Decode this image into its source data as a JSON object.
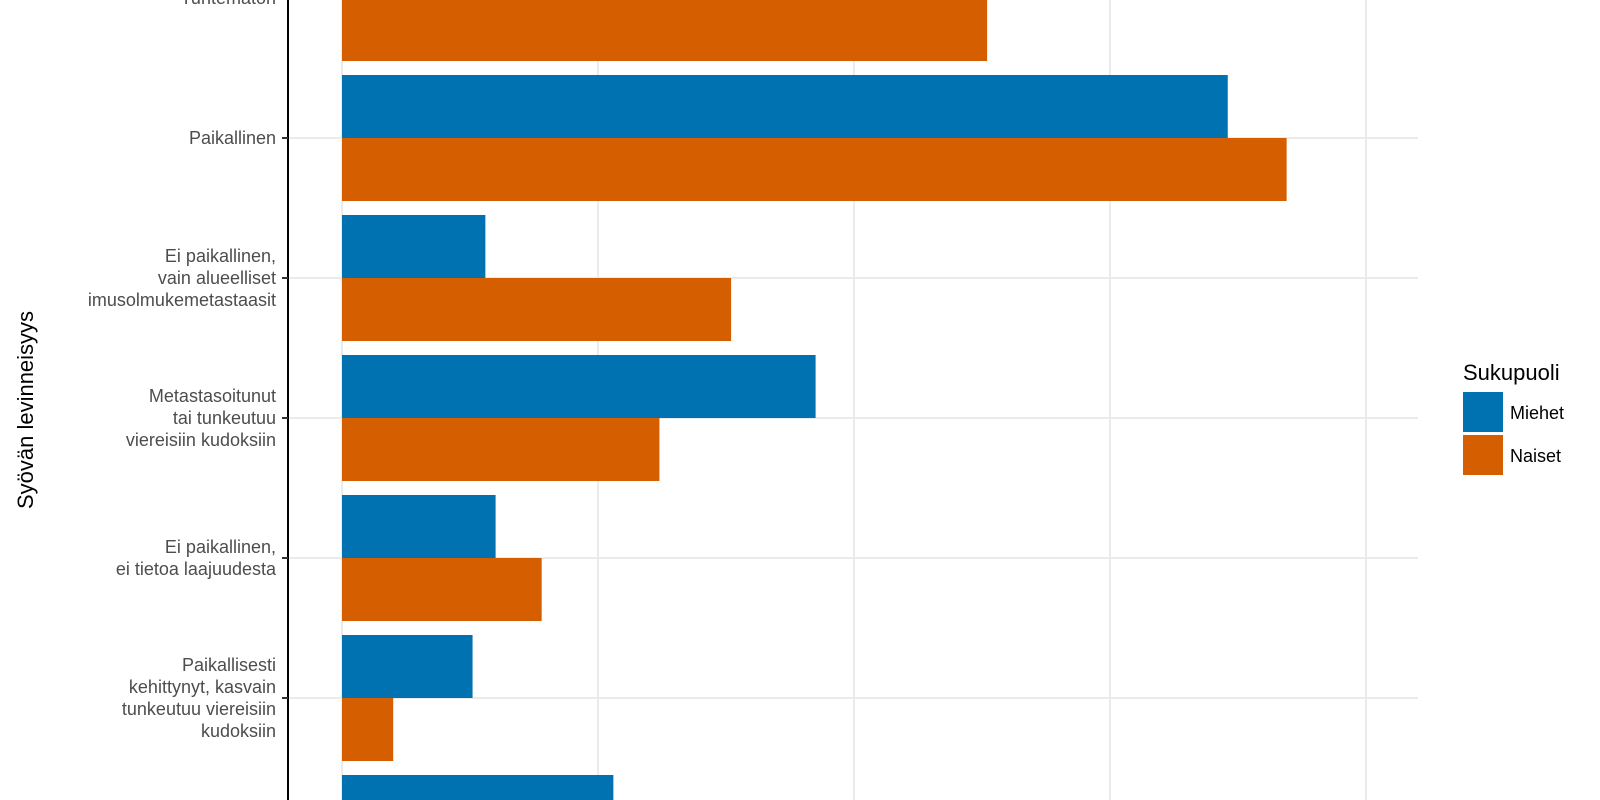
{
  "chart_data": {
    "type": "bar",
    "orientation": "horizontal",
    "ylabel": "Syövän levinneisyys",
    "categories": [
      [
        "Tuntematon"
      ],
      [
        "Paikallinen"
      ],
      [
        "Ei paikallinen,",
        "vain alueelliset",
        "imusolmukemetastaasit"
      ],
      [
        "Metastasoitunut",
        "tai tunkeutuu",
        "viereisiin kudoksiin"
      ],
      [
        "Ei paikallinen,",
        "ei tietoa laajuudesta"
      ],
      [
        "Paikallisesti",
        "kehittynyt, kasvain",
        "tunkeutuu viereisiin",
        "kudoksiin"
      ],
      [
        ""
      ]
    ],
    "series": [
      {
        "name": "Miehet",
        "color": "#0072B2",
        "values": [
          null,
          34.6,
          5.6,
          18.5,
          6.0,
          5.1,
          10.6
        ]
      },
      {
        "name": "Naiset",
        "color": "#D55E00",
        "values": [
          25.2,
          36.9,
          15.2,
          12.4,
          7.8,
          2.0,
          null
        ]
      }
    ],
    "xlim": [
      -2,
      42
    ],
    "grid": true,
    "legend": {
      "title": "Sukupuoli",
      "position": "right",
      "items": [
        "Miehet",
        "Naiset"
      ]
    }
  }
}
